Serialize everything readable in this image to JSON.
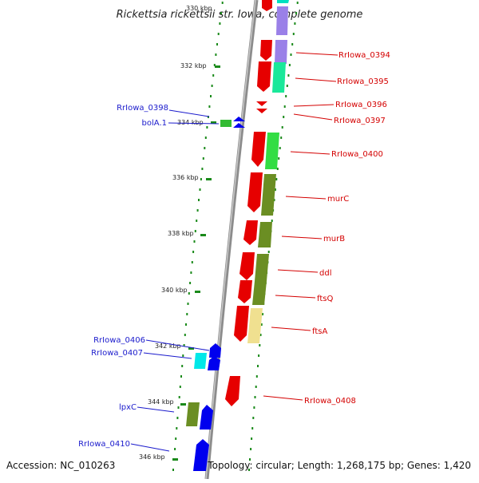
{
  "title": "Rickettsia rickettsii str. Iowa, complete genome",
  "top_kbp_partial": "330 kbp",
  "footer": {
    "accession": "Accession: NC_010263",
    "summary": "Topology: circular; Length: 1,268,175 bp; Genes: 1,420"
  },
  "colors": {
    "forward_label": "#d40000",
    "reverse_label": "#1a1acc",
    "backbone": "#8c8c8c",
    "tick": "#1a8a1a"
  },
  "kbp_labels": [
    "332 kbp",
    "334 kbp",
    "336 kbp",
    "338 kbp",
    "340 kbp",
    "342 kbp",
    "344 kbp",
    "346 kbp"
  ],
  "right_labels": [
    "RrIowa_0394",
    "RrIowa_0395",
    "RrIowa_0396",
    "RrIowa_0397",
    "RrIowa_0400",
    "murC",
    "murB",
    "ddl",
    "ftsQ",
    "ftsA",
    "RrIowa_0408"
  ],
  "left_labels": [
    "RrIowa_0398",
    "bolA.1",
    "RrIowa_0406",
    "RrIowa_0407",
    "lpxC",
    "RrIowa_0410"
  ]
}
